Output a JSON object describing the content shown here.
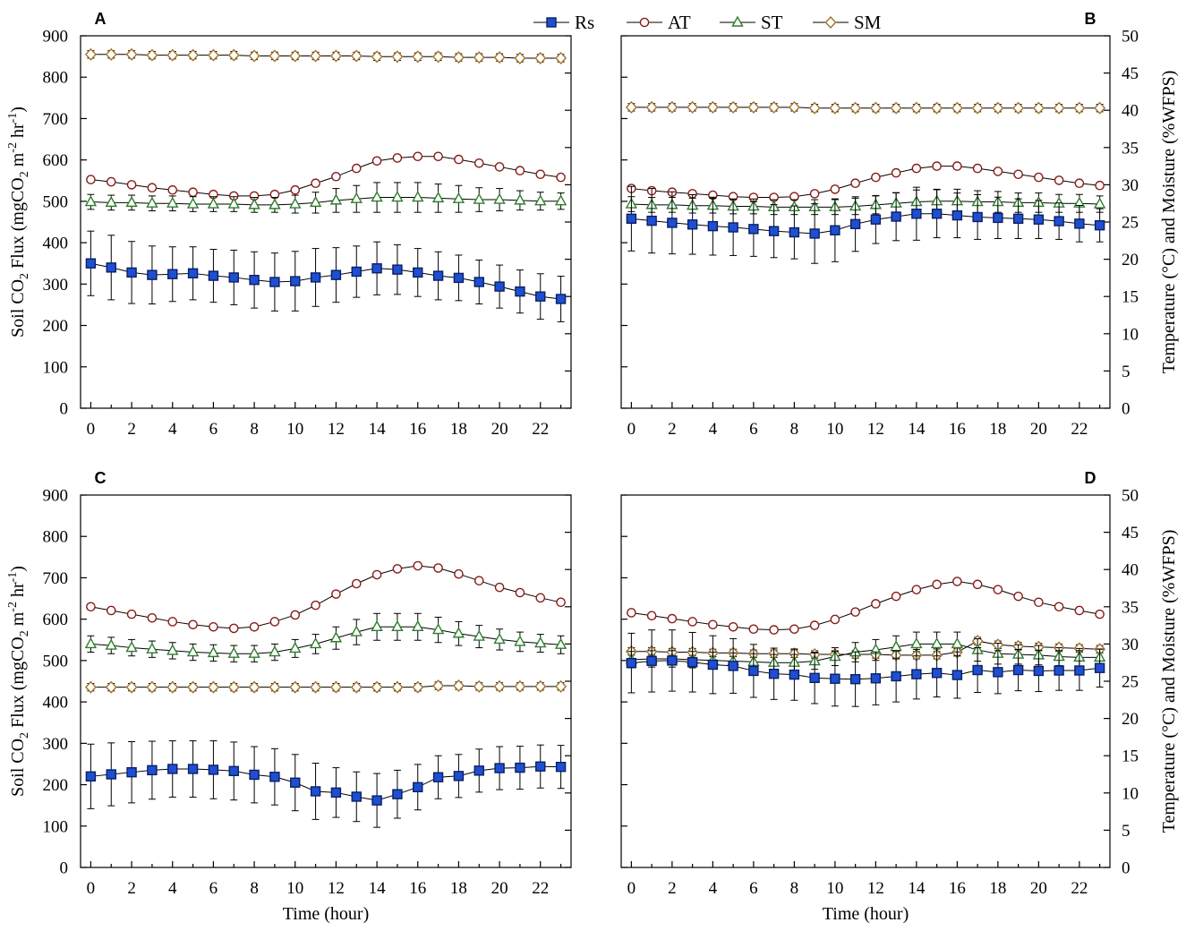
{
  "chart_data": {
    "type": "line",
    "legend": {
      "placement": "top-center",
      "entries": [
        {
          "key": "Rs",
          "label": "Rs"
        },
        {
          "key": "AT",
          "label": "AT"
        },
        {
          "key": "ST",
          "label": "ST"
        },
        {
          "key": "SM",
          "label": "SM"
        }
      ]
    },
    "styles": {
      "Rs": {
        "marker": "square",
        "fill": "#1f4fd0",
        "stroke": "#0a1e66"
      },
      "AT": {
        "marker": "circle",
        "fill": "#ffffff",
        "stroke": "#8b1a1a"
      },
      "ST": {
        "marker": "triangle",
        "fill": "#ffffff",
        "stroke": "#2e7d2e"
      },
      "SM": {
        "marker": "diamond",
        "fill": "#ffffff",
        "stroke": "#a0722a"
      }
    },
    "left_axis": {
      "label": "Soil CO₂ Flux (mgCO₂ m⁻² hr⁻¹)",
      "label_parts": [
        "Soil CO",
        "2",
        " Flux (mgCO",
        "2",
        " m",
        "-2",
        " hr",
        "-1",
        ")"
      ],
      "ylim": [
        0,
        900
      ],
      "ticks": [
        "0",
        "100",
        "200",
        "300",
        "400",
        "500",
        "600",
        "700",
        "800",
        "900"
      ]
    },
    "right_axis": {
      "label": "Temperature (°C) and Moisture (%WFPS)",
      "ylim": [
        0,
        50
      ],
      "ticks": [
        "0",
        "5",
        "10",
        "15",
        "20",
        "25",
        "30",
        "35",
        "40",
        "45",
        "50"
      ]
    },
    "x_axis": {
      "label": "Time (hour)",
      "xlim": [
        -0.5,
        23.5
      ],
      "ticks": [
        "0",
        "2",
        "4",
        "6",
        "8",
        "10",
        "12",
        "14",
        "16",
        "18",
        "20",
        "22"
      ]
    },
    "panels": [
      {
        "label": "A",
        "series": {
          "Rs": {
            "values": [
              350,
              340,
              328,
              322,
              324,
              326,
              320,
              316,
              310,
              305,
              307,
              316,
              322,
              330,
              338,
              335,
              328,
              320,
              315,
              305,
              294,
              282,
              270,
              264
            ],
            "err": [
              78,
              78,
              75,
              70,
              66,
              64,
              64,
              66,
              68,
              70,
              72,
              70,
              66,
              62,
              64,
              60,
              58,
              58,
              55,
              53,
              52,
              52,
              55,
              55
            ]
          },
          "AT": {
            "values": [
              30.7,
              30.4,
              30.0,
              29.6,
              29.3,
              29.0,
              28.7,
              28.5,
              28.5,
              28.7,
              29.3,
              30.2,
              31.1,
              32.2,
              33.2,
              33.6,
              33.8,
              33.8,
              33.4,
              32.9,
              32.4,
              31.9,
              31.4,
              31.0
            ]
          },
          "ST": {
            "values": [
              27.7,
              27.6,
              27.6,
              27.5,
              27.5,
              27.4,
              27.4,
              27.4,
              27.3,
              27.3,
              27.4,
              27.6,
              27.9,
              28.1,
              28.3,
              28.3,
              28.3,
              28.2,
              28.1,
              28.0,
              28.0,
              27.9,
              27.8,
              27.8
            ],
            "err": [
              1.0,
              1.0,
              1.0,
              1.0,
              1.0,
              1.0,
              1.0,
              1.0,
              1.0,
              1.0,
              1.2,
              1.4,
              1.6,
              1.8,
              2.0,
              2.0,
              2.0,
              1.9,
              1.8,
              1.6,
              1.5,
              1.3,
              1.2,
              1.1
            ]
          },
          "SM": {
            "values": [
              47.5,
              47.5,
              47.5,
              47.4,
              47.4,
              47.4,
              47.4,
              47.4,
              47.3,
              47.3,
              47.3,
              47.3,
              47.3,
              47.3,
              47.2,
              47.2,
              47.2,
              47.2,
              47.1,
              47.1,
              47.1,
              47.0,
              47.0,
              47.0
            ],
            "err": [
              0.5,
              0.5,
              0.5,
              0.5,
              0.5,
              0.5,
              0.5,
              0.5,
              0.5,
              0.5,
              0.5,
              0.5,
              0.5,
              0.5,
              0.5,
              0.5,
              0.5,
              0.5,
              0.5,
              0.5,
              0.5,
              0.5,
              0.5,
              0.5
            ]
          }
        }
      },
      {
        "label": "B",
        "series": {
          "Rs": {
            "values": [
              458,
              453,
              448,
              444,
              440,
              437,
              433,
              428,
              425,
              422,
              430,
              445,
              456,
              463,
              470,
              470,
              466,
              462,
              460,
              458,
              456,
              452,
              446,
              442
            ],
            "err": [
              78,
              78,
              75,
              72,
              70,
              68,
              66,
              64,
              64,
              72,
              76,
              66,
              58,
              58,
              64,
              58,
              54,
              54,
              50,
              48,
              46,
              44,
              44,
              40
            ]
          },
          "AT": {
            "values": [
              29.5,
              29.2,
              29.0,
              28.8,
              28.6,
              28.4,
              28.3,
              28.3,
              28.4,
              28.8,
              29.4,
              30.2,
              31.0,
              31.6,
              32.2,
              32.5,
              32.5,
              32.2,
              31.8,
              31.4,
              31.0,
              30.6,
              30.2,
              29.9
            ]
          },
          "ST": {
            "values": [
              27.4,
              27.3,
              27.3,
              27.2,
              27.2,
              27.1,
              27.1,
              27.0,
              27.0,
              27.0,
              27.0,
              27.1,
              27.3,
              27.5,
              27.7,
              27.8,
              27.8,
              27.7,
              27.7,
              27.6,
              27.6,
              27.5,
              27.5,
              27.4
            ],
            "err": [
              1.0,
              1.0,
              1.0,
              1.0,
              1.0,
              1.0,
              1.0,
              1.0,
              1.0,
              1.0,
              1.0,
              1.1,
              1.2,
              1.4,
              1.6,
              1.6,
              1.6,
              1.5,
              1.4,
              1.3,
              1.3,
              1.2,
              1.2,
              1.1
            ]
          },
          "SM": {
            "values": [
              40.4,
              40.4,
              40.4,
              40.4,
              40.4,
              40.4,
              40.4,
              40.4,
              40.4,
              40.3,
              40.3,
              40.3,
              40.3,
              40.3,
              40.3,
              40.3,
              40.3,
              40.3,
              40.3,
              40.3,
              40.3,
              40.3,
              40.3,
              40.3
            ],
            "err": [
              0.5,
              0.5,
              0.5,
              0.5,
              0.5,
              0.5,
              0.5,
              0.5,
              0.5,
              0.5,
              0.5,
              0.5,
              0.5,
              0.5,
              0.5,
              0.5,
              0.5,
              0.5,
              0.5,
              0.5,
              0.5,
              0.5,
              0.5,
              0.5
            ]
          }
        }
      },
      {
        "label": "C",
        "series": {
          "Rs": {
            "values": [
              220,
              225,
              230,
              235,
              238,
              238,
              236,
              233,
              224,
              219,
              205,
              184,
              181,
              171,
              162,
              177,
              194,
              218,
              221,
              234,
              240,
              241,
              244,
              243
            ],
            "err": [
              78,
              76,
              74,
              70,
              68,
              68,
              70,
              70,
              68,
              68,
              68,
              68,
              60,
              60,
              65,
              58,
              55,
              52,
              52,
              52,
              52,
              52,
              52,
              52
            ]
          },
          "AT": {
            "values": [
              35.0,
              34.5,
              34.0,
              33.5,
              33.0,
              32.6,
              32.3,
              32.1,
              32.3,
              33.0,
              33.9,
              35.2,
              36.7,
              38.1,
              39.3,
              40.1,
              40.5,
              40.2,
              39.4,
              38.5,
              37.6,
              36.9,
              36.2,
              35.6
            ]
          },
          "ST": {
            "values": [
              30.0,
              29.8,
              29.5,
              29.3,
              29.1,
              28.9,
              28.8,
              28.7,
              28.7,
              28.9,
              29.4,
              30.0,
              30.8,
              31.6,
              32.3,
              32.3,
              32.3,
              31.9,
              31.4,
              31.0,
              30.6,
              30.3,
              30.1,
              29.9
            ],
            "err": [
              1.1,
              1.1,
              1.1,
              1.1,
              1.1,
              1.1,
              1.1,
              1.1,
              1.1,
              1.1,
              1.2,
              1.3,
              1.5,
              1.7,
              1.8,
              1.8,
              1.8,
              1.7,
              1.6,
              1.5,
              1.4,
              1.3,
              1.2,
              1.2
            ]
          },
          "SM": {
            "values": [
              24.2,
              24.2,
              24.2,
              24.2,
              24.2,
              24.2,
              24.2,
              24.2,
              24.2,
              24.2,
              24.2,
              24.2,
              24.2,
              24.2,
              24.2,
              24.2,
              24.2,
              24.4,
              24.4,
              24.3,
              24.3,
              24.3,
              24.3,
              24.3
            ],
            "err": [
              0.5,
              0.5,
              0.5,
              0.5,
              0.5,
              0.5,
              0.5,
              0.5,
              0.5,
              0.5,
              0.5,
              0.5,
              0.5,
              0.5,
              0.5,
              0.5,
              0.5,
              0.5,
              0.5,
              0.5,
              0.5,
              0.5,
              0.5,
              0.5
            ]
          }
        }
      },
      {
        "label": "D",
        "series": {
          "Rs": {
            "values": [
              494,
              499,
              500,
              496,
              490,
              487,
              475,
              468,
              466,
              458,
              456,
              455,
              457,
              462,
              467,
              470,
              465,
              477,
              472,
              477,
              475,
              476,
              476,
              482
            ],
            "err": [
              72,
              75,
              74,
              72,
              70,
              66,
              64,
              62,
              62,
              62,
              66,
              66,
              64,
              62,
              60,
              58,
              56,
              54,
              52,
              50,
              50,
              48,
              48,
              46
            ]
          },
          "AT": {
            "values": [
              34.2,
              33.8,
              33.4,
              33.0,
              32.6,
              32.3,
              32.0,
              31.9,
              32.0,
              32.5,
              33.3,
              34.3,
              35.4,
              36.4,
              37.3,
              38.0,
              38.4,
              38.0,
              37.3,
              36.4,
              35.6,
              35.0,
              34.5,
              34.0
            ]
          },
          "ST": {
            "values": [
              27.9,
              28.0,
              28.0,
              27.9,
              27.8,
              27.7,
              27.6,
              27.5,
              27.5,
              27.7,
              28.3,
              28.9,
              29.2,
              29.6,
              30.0,
              30.0,
              30.0,
              29.2,
              28.7,
              28.6,
              28.5,
              28.3,
              28.2,
              28.2
            ],
            "err": [
              1.1,
              1.1,
              1.1,
              1.1,
              1.1,
              1.1,
              1.1,
              1.1,
              1.1,
              1.1,
              1.2,
              1.3,
              1.4,
              1.5,
              1.6,
              1.6,
              1.6,
              1.5,
              1.4,
              1.3,
              1.3,
              1.2,
              1.2,
              1.1
            ]
          },
          "SM": {
            "values": [
              29.0,
              29.0,
              28.9,
              28.9,
              28.8,
              28.8,
              28.7,
              28.7,
              28.7,
              28.6,
              28.6,
              28.6,
              28.6,
              28.5,
              28.5,
              28.5,
              28.9,
              30.4,
              29.9,
              29.7,
              29.6,
              29.5,
              29.4,
              29.3
            ],
            "err": [
              0.5,
              0.5,
              0.5,
              0.5,
              0.5,
              0.5,
              0.5,
              0.5,
              0.5,
              0.5,
              0.5,
              0.5,
              0.5,
              0.5,
              0.5,
              0.5,
              0.5,
              0.5,
              0.5,
              0.5,
              0.5,
              0.5,
              0.5,
              0.5
            ]
          }
        }
      }
    ]
  }
}
